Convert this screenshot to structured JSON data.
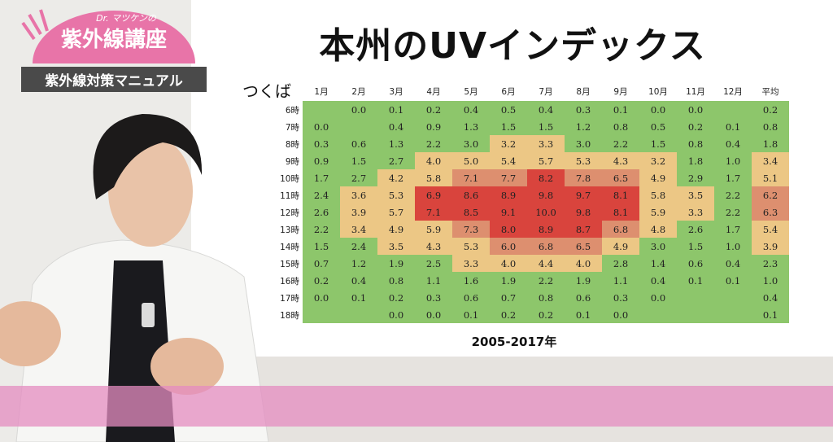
{
  "logo": {
    "subtitle": "Dr. マツケンの",
    "name": "紫外線講座",
    "banner": "紫外線対策マニュアル"
  },
  "header": {
    "title": "本州のUVインデックス"
  },
  "table": {
    "location": "つくば",
    "caption": "2005-2017年",
    "columns": [
      "1月",
      "2月",
      "3月",
      "4月",
      "5月",
      "6月",
      "7月",
      "8月",
      "9月",
      "10月",
      "11月",
      "12月",
      "平均"
    ],
    "rows": [
      {
        "label": "6時",
        "cells": [
          null,
          "0.0",
          "0.1",
          "0.2",
          "0.4",
          "0.5",
          "0.4",
          "0.3",
          "0.1",
          "0.0",
          "0.0",
          null,
          "0.2"
        ],
        "fills": [
          "#8dc66b",
          "#8dc66b",
          "#8dc66b",
          "#8dc66b",
          "#8dc66b",
          "#8dc66b",
          "#8dc66b",
          "#8dc66b",
          "#8dc66b",
          "#8dc66b",
          "#8dc66b",
          "#8dc66b",
          "#8dc66b"
        ]
      },
      {
        "label": "7時",
        "cells": [
          "0.0",
          null,
          "0.4",
          "0.9",
          "1.3",
          "1.5",
          "1.5",
          "1.2",
          "0.8",
          "0.5",
          "0.2",
          "0.1",
          "0.8"
        ],
        "fills": [
          "#8dc66b",
          "#8dc66b",
          "#8dc66b",
          "#8dc66b",
          "#8dc66b",
          "#8dc66b",
          "#8dc66b",
          "#8dc66b",
          "#8dc66b",
          "#8dc66b",
          "#8dc66b",
          "#8dc66b",
          "#8dc66b"
        ]
      },
      {
        "label": "8時",
        "cells": [
          "0.3",
          "0.6",
          "1.3",
          "2.2",
          "3.0",
          "3.2",
          "3.3",
          "3.0",
          "2.2",
          "1.5",
          "0.8",
          "0.4",
          "1.8"
        ],
        "fills": [
          "#8dc66b",
          "#8dc66b",
          "#8dc66b",
          "#8dc66b",
          "#8dc66b",
          "#ecc785",
          "#ecc785",
          "#8dc66b",
          "#8dc66b",
          "#8dc66b",
          "#8dc66b",
          "#8dc66b",
          "#8dc66b"
        ]
      },
      {
        "label": "9時",
        "cells": [
          "0.9",
          "1.5",
          "2.7",
          "4.0",
          "5.0",
          "5.4",
          "5.7",
          "5.3",
          "4.3",
          "3.2",
          "1.8",
          "1.0",
          "3.4"
        ],
        "fills": [
          "#8dc66b",
          "#8dc66b",
          "#8dc66b",
          "#ecc785",
          "#ecc785",
          "#ecc785",
          "#ecc785",
          "#ecc785",
          "#ecc785",
          "#ecc785",
          "#8dc66b",
          "#8dc66b",
          "#ecc785"
        ]
      },
      {
        "label": "10時",
        "cells": [
          "1.7",
          "2.7",
          "4.2",
          "5.8",
          "7.1",
          "7.7",
          "8.2",
          "7.8",
          "6.5",
          "4.9",
          "2.9",
          "1.7",
          "5.1"
        ],
        "fills": [
          "#8dc66b",
          "#8dc66b",
          "#ecc785",
          "#ecc785",
          "#dd8f6f",
          "#dd8f6f",
          "#d9443d",
          "#dd8f6f",
          "#dd8f6f",
          "#ecc785",
          "#8dc66b",
          "#8dc66b",
          "#ecc785"
        ]
      },
      {
        "label": "11時",
        "cells": [
          "2.4",
          "3.6",
          "5.3",
          "6.9",
          "8.6",
          "8.9",
          "9.8",
          "9.7",
          "8.1",
          "5.8",
          "3.5",
          "2.2",
          "6.2"
        ],
        "fills": [
          "#8dc66b",
          "#ecc785",
          "#ecc785",
          "#d9443d",
          "#d9443d",
          "#d9443d",
          "#d9443d",
          "#d9443d",
          "#d9443d",
          "#ecc785",
          "#ecc785",
          "#8dc66b",
          "#dd8f6f"
        ]
      },
      {
        "label": "12時",
        "cells": [
          "2.6",
          "3.9",
          "5.7",
          "7.1",
          "8.5",
          "9.1",
          "10.0",
          "9.8",
          "8.1",
          "5.9",
          "3.3",
          "2.2",
          "6.3"
        ],
        "fills": [
          "#8dc66b",
          "#ecc785",
          "#ecc785",
          "#d9443d",
          "#d9443d",
          "#d9443d",
          "#d9443d",
          "#d9443d",
          "#d9443d",
          "#ecc785",
          "#ecc785",
          "#8dc66b",
          "#dd8f6f"
        ]
      },
      {
        "label": "13時",
        "cells": [
          "2.2",
          "3.4",
          "4.9",
          "5.9",
          "7.3",
          "8.0",
          "8.9",
          "8.7",
          "6.8",
          "4.8",
          "2.6",
          "1.7",
          "5.4"
        ],
        "fills": [
          "#8dc66b",
          "#ecc785",
          "#ecc785",
          "#ecc785",
          "#dd8f6f",
          "#d9443d",
          "#d9443d",
          "#d9443d",
          "#dd8f6f",
          "#ecc785",
          "#8dc66b",
          "#8dc66b",
          "#ecc785"
        ]
      },
      {
        "label": "14時",
        "cells": [
          "1.5",
          "2.4",
          "3.5",
          "4.3",
          "5.3",
          "6.0",
          "6.8",
          "6.5",
          "4.9",
          "3.0",
          "1.5",
          "1.0",
          "3.9"
        ],
        "fills": [
          "#8dc66b",
          "#8dc66b",
          "#ecc785",
          "#ecc785",
          "#ecc785",
          "#dd8f6f",
          "#dd8f6f",
          "#dd8f6f",
          "#ecc785",
          "#8dc66b",
          "#8dc66b",
          "#8dc66b",
          "#ecc785"
        ]
      },
      {
        "label": "15時",
        "cells": [
          "0.7",
          "1.2",
          "1.9",
          "2.5",
          "3.3",
          "4.0",
          "4.4",
          "4.0",
          "2.8",
          "1.4",
          "0.6",
          "0.4",
          "2.3"
        ],
        "fills": [
          "#8dc66b",
          "#8dc66b",
          "#8dc66b",
          "#8dc66b",
          "#ecc785",
          "#ecc785",
          "#ecc785",
          "#ecc785",
          "#8dc66b",
          "#8dc66b",
          "#8dc66b",
          "#8dc66b",
          "#8dc66b"
        ]
      },
      {
        "label": "16時",
        "cells": [
          "0.2",
          "0.4",
          "0.8",
          "1.1",
          "1.6",
          "1.9",
          "2.2",
          "1.9",
          "1.1",
          "0.4",
          "0.1",
          "0.1",
          "1.0"
        ],
        "fills": [
          "#8dc66b",
          "#8dc66b",
          "#8dc66b",
          "#8dc66b",
          "#8dc66b",
          "#8dc66b",
          "#8dc66b",
          "#8dc66b",
          "#8dc66b",
          "#8dc66b",
          "#8dc66b",
          "#8dc66b",
          "#8dc66b"
        ]
      },
      {
        "label": "17時",
        "cells": [
          "0.0",
          "0.1",
          "0.2",
          "0.3",
          "0.6",
          "0.7",
          "0.8",
          "0.6",
          "0.3",
          "0.0",
          null,
          null,
          "0.4"
        ],
        "fills": [
          "#8dc66b",
          "#8dc66b",
          "#8dc66b",
          "#8dc66b",
          "#8dc66b",
          "#8dc66b",
          "#8dc66b",
          "#8dc66b",
          "#8dc66b",
          "#8dc66b",
          "#8dc66b",
          "#8dc66b",
          "#8dc66b"
        ]
      },
      {
        "label": "18時",
        "cells": [
          null,
          null,
          "0.0",
          "0.0",
          "0.1",
          "0.2",
          "0.2",
          "0.1",
          "0.0",
          null,
          null,
          null,
          "0.1"
        ],
        "fills": [
          "#8dc66b",
          "#8dc66b",
          "#8dc66b",
          "#8dc66b",
          "#8dc66b",
          "#8dc66b",
          "#8dc66b",
          "#8dc66b",
          "#8dc66b",
          "#8dc66b",
          "#8dc66b",
          "#8dc66b",
          "#8dc66b"
        ]
      }
    ]
  }
}
